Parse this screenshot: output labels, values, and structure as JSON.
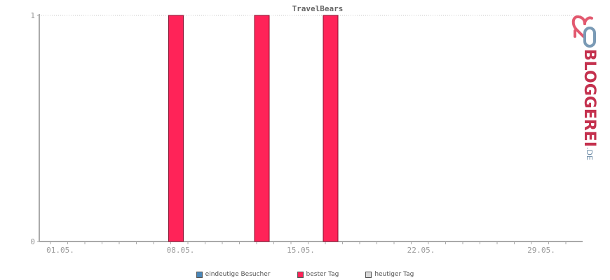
{
  "chart_data": {
    "type": "bar",
    "title": "TravelBears",
    "x_tick_labels": [
      "01.05.",
      "08.05.",
      "15.05.",
      "22.05.",
      "29.05."
    ],
    "y_tick_labels": [
      "0",
      "1"
    ],
    "ylim": [
      0,
      1
    ],
    "day_range": [
      1,
      31
    ],
    "series": [
      {
        "name": "bester Tag",
        "color": "#ff2358",
        "days": [
          8,
          13,
          17
        ],
        "values": [
          1,
          1,
          1
        ]
      }
    ],
    "legend": [
      {
        "label": "eindeutige Besucher",
        "color": "#4a86b8"
      },
      {
        "label": "bester Tag",
        "color": "#ff2358"
      },
      {
        "label": "heutiger Tag",
        "color": "#d8d8d8"
      }
    ],
    "legend_position": "bottom",
    "grid": "top line only"
  },
  "brand": {
    "name": "BLOGGEREI",
    "tld": ".DE",
    "color": "#c4314e",
    "logo_icon": "heart-link-icon"
  }
}
